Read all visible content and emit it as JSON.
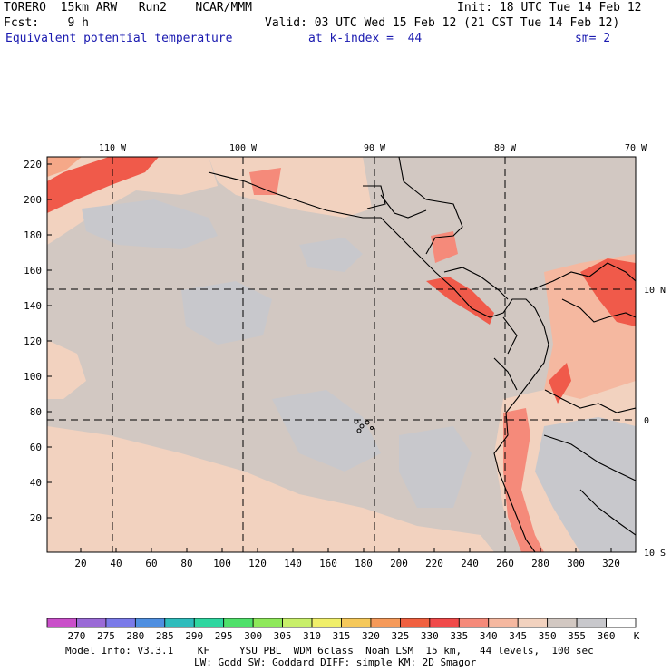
{
  "header": {
    "model": "TORERO  15km ARW   Run2    NCAR/MMM",
    "init": "Init: 18 UTC Tue 14 Feb 12",
    "fcst": "Fcst:    9 h",
    "valid": "Valid: 03 UTC Wed 15 Feb 12 (21 CST Tue 14 Feb 12)",
    "field": "Equivalent potential temperature",
    "level": "at k-index =  44",
    "smoothing": "sm= 2"
  },
  "map": {
    "lon_labels": [
      "110 W",
      "100 W",
      "90 W",
      "80 W",
      "70 W"
    ],
    "lat_labels": [
      "10 N",
      "0",
      "10 S"
    ],
    "x_ticks": [
      "20",
      "40",
      "60",
      "80",
      "100",
      "120",
      "140",
      "160",
      "180",
      "200",
      "220",
      "240",
      "260",
      "280",
      "300",
      "320"
    ],
    "y_ticks": [
      "220",
      "200",
      "180",
      "160",
      "140",
      "120",
      "100",
      "80",
      "60",
      "40",
      "20"
    ]
  },
  "colorbar": {
    "labels": [
      "270",
      "275",
      "280",
      "285",
      "290",
      "295",
      "300",
      "305",
      "310",
      "315",
      "320",
      "325",
      "330",
      "335",
      "340",
      "345",
      "350",
      "355",
      "360"
    ],
    "unit": "K",
    "colors": [
      "#c94fc9",
      "#9a6ad6",
      "#7a7ae8",
      "#4f8fe0",
      "#2fbcbc",
      "#2fd6a0",
      "#4fe06a",
      "#8ee85a",
      "#c8ef6a",
      "#f0ef6a",
      "#f5c85a",
      "#f59a5a",
      "#f06040",
      "#f04a4a",
      "#f58a7a",
      "#f5b8a0",
      "#f2d2bf",
      "#d2c8c2",
      "#c8c8cc",
      "#ffffff"
    ]
  },
  "footer": {
    "line1": "Model Info: V3.3.1    KF     YSU PBL  WDM 6class  Noah LSM  15 km,   44 levels,  100 sec",
    "line2": "LW: Godd SW: Goddard DIFF: simple KM: 2D Smagor"
  }
}
